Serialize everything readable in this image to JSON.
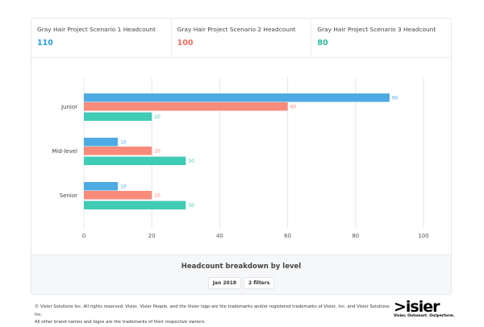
{
  "kpis": [
    {
      "label": "Gray Hair Project Scenario 1 Headcount",
      "value": "110",
      "color": "#2a9fd8"
    },
    {
      "label": "Gray Hair Project Scenario 2 Headcount",
      "value": "100",
      "color": "#f26d5f"
    },
    {
      "label": "Gray Hair Project Scenario 3 Headcount",
      "value": "80",
      "color": "#2bb9a0"
    }
  ],
  "chart_data": {
    "type": "bar",
    "orientation": "horizontal",
    "categories": [
      "Junior",
      "Mid-level",
      "Senior"
    ],
    "series": [
      {
        "values": [
          90,
          10,
          10
        ],
        "color": "#4eaae2"
      },
      {
        "values": [
          60,
          20,
          20
        ],
        "color": "#fa8b7b"
      },
      {
        "values": [
          20,
          30,
          30
        ],
        "color": "#40cbb5"
      }
    ],
    "xlim": [
      0,
      100
    ],
    "xticks": [
      0,
      20,
      40,
      60,
      80,
      100
    ],
    "grid": true
  },
  "footer": {
    "title": "Headcount breakdown by level",
    "chips": [
      "Jan 2018",
      "2 filters"
    ]
  },
  "legal": [
    "© Visier Solutions Inc. All rights reserved. Visier, Visier People, and the Visier logo are the trademarks and/or registered trademarks of Visier, Inc. and Visier Solutions Inc.",
    "All other brand names and logos are the trademarks of their respective owners."
  ],
  "logo": {
    "word": ">isier",
    "tagline": "Visier. Outsmart. Outperform."
  }
}
